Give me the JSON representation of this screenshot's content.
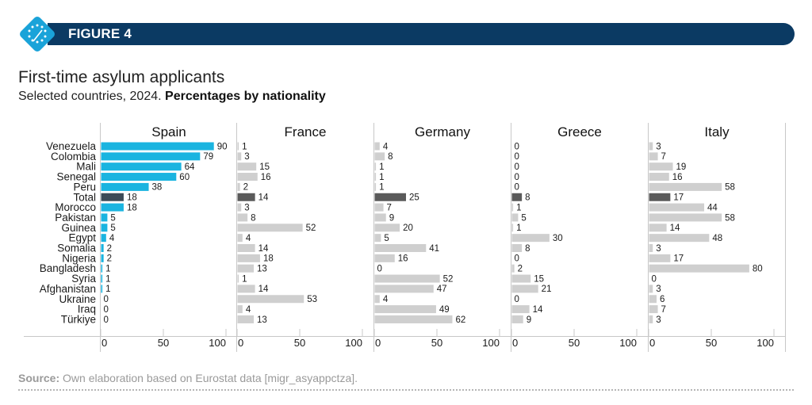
{
  "header": {
    "figure_label": "FIGURE 4",
    "title": "First-time asylum applicants",
    "subtitle_plain": "Selected countries, 2024. ",
    "subtitle_bold": "Percentages by nationality"
  },
  "footer": {
    "source_label": "Source:",
    "source_text": " Own elaboration based on Eurostat data [migr_asyappctza]."
  },
  "colors": {
    "brand_navy": "#0b3a63",
    "logo_blue": "#1aa3d9",
    "spain_bar": "#1ab4e0",
    "total_dark": "#3d4b57",
    "total_dark_other": "#5a5a5a",
    "other_bar": "#cfcfcf"
  },
  "chart_data": {
    "type": "bar",
    "orientation": "horizontal",
    "categories": [
      "Venezuela",
      "Colombia",
      "Mali",
      "Senegal",
      "Peru",
      "Total",
      "Morocco",
      "Pakistan",
      "Guinea",
      "Egypt",
      "Somalia",
      "Nigeria",
      "Bangladesh",
      "Syria",
      "Afghanistan",
      "Ukraine",
      "Iraq",
      "Türkiye"
    ],
    "xlim": [
      0,
      100
    ],
    "xticks": [
      "0",
      "50",
      "100"
    ],
    "highlight_category": "Total",
    "panels": [
      {
        "name": "Spain",
        "values": [
          90,
          79,
          64,
          60,
          38,
          18,
          18,
          5,
          5,
          4,
          2,
          2,
          1,
          1,
          1,
          0,
          0,
          0
        ]
      },
      {
        "name": "France",
        "values": [
          1,
          3,
          15,
          16,
          2,
          14,
          3,
          8,
          52,
          4,
          14,
          18,
          13,
          1,
          14,
          53,
          4,
          13
        ]
      },
      {
        "name": "Germany",
        "values": [
          4,
          8,
          1,
          1,
          1,
          25,
          7,
          9,
          20,
          5,
          41,
          16,
          0,
          52,
          47,
          4,
          49,
          62
        ]
      },
      {
        "name": "Greece",
        "values": [
          0,
          0,
          0,
          0,
          0,
          8,
          1,
          5,
          1,
          30,
          8,
          0,
          2,
          15,
          21,
          0,
          14,
          9
        ]
      },
      {
        "name": "Italy",
        "values": [
          3,
          7,
          19,
          16,
          58,
          17,
          44,
          58,
          14,
          48,
          3,
          17,
          80,
          0,
          3,
          6,
          7,
          3
        ]
      }
    ]
  }
}
